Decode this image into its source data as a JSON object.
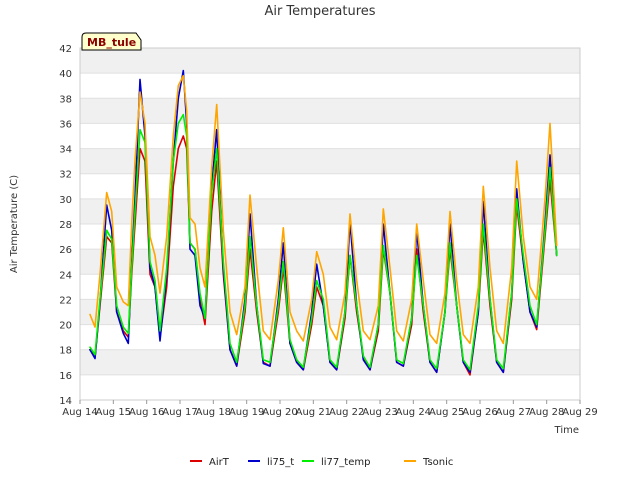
{
  "chart_data": {
    "type": "line",
    "title": "Air Temperatures",
    "xlabel": "Time",
    "ylabel": "Air Temperature (C)",
    "site_label": "MB_tule",
    "xlim": [
      14,
      29
    ],
    "ylim": [
      14,
      42
    ],
    "y_ticks": [
      14,
      16,
      18,
      20,
      22,
      24,
      26,
      28,
      30,
      32,
      34,
      36,
      38,
      40,
      42
    ],
    "x_ticks": [
      {
        "value": 14,
        "label": "Aug 14"
      },
      {
        "value": 15,
        "label": "Aug 15"
      },
      {
        "value": 16,
        "label": "Aug 16"
      },
      {
        "value": 17,
        "label": "Aug 17"
      },
      {
        "value": 18,
        "label": "Aug 18"
      },
      {
        "value": 19,
        "label": "Aug 19"
      },
      {
        "value": 20,
        "label": "Aug 20"
      },
      {
        "value": 21,
        "label": "Aug 21"
      },
      {
        "value": 22,
        "label": "Aug 22"
      },
      {
        "value": 23,
        "label": "Aug 23"
      },
      {
        "value": 24,
        "label": "Aug 24"
      },
      {
        "value": 25,
        "label": "Aug 25"
      },
      {
        "value": 26,
        "label": "Aug 26"
      },
      {
        "value": 27,
        "label": "Aug 27"
      },
      {
        "value": 28,
        "label": "Aug 28"
      },
      {
        "value": 29,
        "label": "Aug 29"
      }
    ],
    "grid": "horizontal bands",
    "legend_position": "bottom",
    "series": [
      {
        "name": "AirT",
        "color": "#dd0000",
        "x": [
          14.3,
          14.45,
          14.6,
          14.8,
          14.95,
          15.1,
          15.3,
          15.45,
          15.55,
          15.65,
          15.8,
          15.95,
          16.1,
          16.25,
          16.4,
          16.6,
          16.8,
          16.95,
          17.1,
          17.2,
          17.3,
          17.45,
          17.6,
          17.75,
          17.95,
          18.1,
          18.3,
          18.5,
          18.7,
          18.95,
          19.1,
          19.3,
          19.5,
          19.7,
          19.95,
          20.1,
          20.3,
          20.5,
          20.7,
          20.95,
          21.1,
          21.3,
          21.5,
          21.7,
          21.95,
          22.1,
          22.3,
          22.5,
          22.7,
          22.95,
          23.1,
          23.3,
          23.5,
          23.7,
          23.95,
          24.1,
          24.3,
          24.5,
          24.7,
          24.95,
          25.1,
          25.3,
          25.5,
          25.7,
          25.95,
          26.1,
          26.3,
          26.5,
          26.7,
          26.95,
          27.1,
          27.3,
          27.5,
          27.7,
          27.95,
          28.1,
          28.3
        ],
        "y": [
          18.0,
          17.4,
          21.5,
          27.0,
          26.5,
          21.0,
          19.5,
          19.0,
          24.0,
          28.0,
          34.0,
          33.0,
          24.0,
          23.0,
          19.0,
          23.0,
          31.0,
          34.0,
          35.0,
          34.0,
          26.5,
          26.0,
          22.0,
          20.0,
          29.0,
          33.0,
          24.0,
          18.0,
          16.7,
          21.0,
          26.0,
          21.0,
          17.0,
          16.7,
          21.0,
          24.5,
          18.5,
          17.0,
          16.4,
          20.0,
          23.0,
          21.5,
          17.0,
          16.4,
          20.5,
          25.5,
          21.0,
          17.5,
          16.4,
          19.5,
          26.0,
          22.5,
          17.0,
          16.7,
          20.0,
          26.0,
          21.0,
          17.0,
          16.2,
          21.0,
          26.0,
          21.5,
          17.0,
          16.0,
          21.0,
          27.5,
          21.5,
          17.0,
          16.2,
          22.0,
          29.5,
          25.0,
          21.0,
          19.6,
          27.0,
          31.5,
          25.5
        ]
      },
      {
        "name": "li75_t",
        "color": "#0000cc",
        "x": [
          14.3,
          14.45,
          14.6,
          14.8,
          14.95,
          15.1,
          15.3,
          15.45,
          15.55,
          15.65,
          15.8,
          15.95,
          16.1,
          16.25,
          16.4,
          16.6,
          16.8,
          16.95,
          17.1,
          17.2,
          17.3,
          17.45,
          17.6,
          17.75,
          17.95,
          18.1,
          18.3,
          18.5,
          18.7,
          18.95,
          19.1,
          19.3,
          19.5,
          19.7,
          19.95,
          20.1,
          20.3,
          20.5,
          20.7,
          20.95,
          21.1,
          21.3,
          21.5,
          21.7,
          21.95,
          22.1,
          22.3,
          22.5,
          22.7,
          22.95,
          23.1,
          23.3,
          23.5,
          23.7,
          23.95,
          24.1,
          24.3,
          24.5,
          24.7,
          24.95,
          25.1,
          25.3,
          25.5,
          25.7,
          25.95,
          26.1,
          26.3,
          26.5,
          26.7,
          26.95,
          27.1,
          27.3,
          27.5,
          27.7,
          27.95,
          28.1,
          28.3
        ],
        "y": [
          18.0,
          17.3,
          21.8,
          29.5,
          27.5,
          21.0,
          19.3,
          18.5,
          25.0,
          30.0,
          39.5,
          35.0,
          24.5,
          23.0,
          18.7,
          24.0,
          33.0,
          38.0,
          40.2,
          36.0,
          26.0,
          25.5,
          21.5,
          20.5,
          31.0,
          35.5,
          24.5,
          18.0,
          16.7,
          22.0,
          28.8,
          21.5,
          16.9,
          16.7,
          22.0,
          26.5,
          18.5,
          17.0,
          16.4,
          21.0,
          24.8,
          21.5,
          17.0,
          16.4,
          21.0,
          28.2,
          21.5,
          17.2,
          16.4,
          20.0,
          28.0,
          22.5,
          17.0,
          16.7,
          20.5,
          27.5,
          21.5,
          17.0,
          16.2,
          21.0,
          28.0,
          21.5,
          17.0,
          16.2,
          21.0,
          29.8,
          22.0,
          17.0,
          16.2,
          22.5,
          30.8,
          25.0,
          21.0,
          19.8,
          28.0,
          33.5,
          25.5
        ]
      },
      {
        "name": "li77_temp",
        "color": "#00ee00",
        "x": [
          14.3,
          14.45,
          14.6,
          14.8,
          14.95,
          15.1,
          15.3,
          15.45,
          15.55,
          15.65,
          15.8,
          15.95,
          16.1,
          16.25,
          16.4,
          16.6,
          16.8,
          16.95,
          17.1,
          17.2,
          17.3,
          17.45,
          17.6,
          17.75,
          17.95,
          18.1,
          18.3,
          18.5,
          18.7,
          18.95,
          19.1,
          19.3,
          19.5,
          19.7,
          19.95,
          20.1,
          20.3,
          20.5,
          20.7,
          20.95,
          21.1,
          21.3,
          21.5,
          21.7,
          21.95,
          22.1,
          22.3,
          22.5,
          22.7,
          22.95,
          23.1,
          23.3,
          23.5,
          23.7,
          23.95,
          24.1,
          24.3,
          24.5,
          24.7,
          24.95,
          25.1,
          25.3,
          25.5,
          25.7,
          25.95,
          26.1,
          26.3,
          26.5,
          26.7,
          26.95,
          27.1,
          27.3,
          27.5,
          27.7,
          27.95,
          28.1,
          28.3
        ],
        "y": [
          18.2,
          17.6,
          22.0,
          27.5,
          26.8,
          21.5,
          19.8,
          19.3,
          24.5,
          29.0,
          35.5,
          34.5,
          25.0,
          23.5,
          19.5,
          24.5,
          33.0,
          36.0,
          36.7,
          35.0,
          26.5,
          26.0,
          22.5,
          20.5,
          30.5,
          34.0,
          25.0,
          18.5,
          17.0,
          21.5,
          27.0,
          21.5,
          17.2,
          17.0,
          21.5,
          25.0,
          18.8,
          17.2,
          16.6,
          20.5,
          23.5,
          22.0,
          17.2,
          16.6,
          21.0,
          25.5,
          21.5,
          17.5,
          16.6,
          20.0,
          26.3,
          22.5,
          17.2,
          16.9,
          20.5,
          25.5,
          21.5,
          17.2,
          16.5,
          21.0,
          26.5,
          21.5,
          17.2,
          16.4,
          21.5,
          28.0,
          22.0,
          17.2,
          16.5,
          22.5,
          30.0,
          25.5,
          21.5,
          20.0,
          27.5,
          32.5,
          25.5
        ]
      },
      {
        "name": "Tsonic",
        "color": "#ffa500",
        "x": [
          14.3,
          14.45,
          14.6,
          14.8,
          14.95,
          15.1,
          15.3,
          15.45,
          15.55,
          15.65,
          15.8,
          15.95,
          16.1,
          16.25,
          16.4,
          16.6,
          16.8,
          16.95,
          17.1,
          17.2,
          17.3,
          17.45,
          17.6,
          17.75,
          17.95,
          18.1,
          18.3,
          18.5,
          18.7,
          18.95,
          19.1,
          19.3,
          19.5,
          19.7,
          19.95,
          20.1,
          20.3,
          20.5,
          20.7,
          20.95,
          21.1,
          21.3,
          21.5,
          21.7,
          21.95,
          22.1,
          22.3,
          22.5,
          22.7,
          22.95,
          23.1,
          23.3,
          23.5,
          23.7,
          23.95,
          24.1,
          24.3,
          24.5,
          24.7,
          24.95,
          25.1,
          25.3,
          25.5,
          25.7,
          25.95,
          26.1,
          26.3,
          26.5,
          26.7,
          26.95,
          27.1,
          27.3,
          27.5,
          27.7,
          27.95,
          28.1,
          28.3
        ],
        "y": [
          20.8,
          19.8,
          24.0,
          30.5,
          29.0,
          23.0,
          21.8,
          21.5,
          28.0,
          33.0,
          38.5,
          36.0,
          27.0,
          25.5,
          22.5,
          27.0,
          35.0,
          39.0,
          39.8,
          37.0,
          28.5,
          28.0,
          24.5,
          23.0,
          32.5,
          37.5,
          27.5,
          21.0,
          19.2,
          23.0,
          30.3,
          24.5,
          19.5,
          18.8,
          23.5,
          27.7,
          21.0,
          19.5,
          18.7,
          22.0,
          25.8,
          24.0,
          19.8,
          18.8,
          22.5,
          28.8,
          23.5,
          19.5,
          18.8,
          21.5,
          29.2,
          24.5,
          19.5,
          18.7,
          22.0,
          28.0,
          23.5,
          19.2,
          18.5,
          22.5,
          29.0,
          23.5,
          19.2,
          18.5,
          23.0,
          31.0,
          24.5,
          19.5,
          18.5,
          24.5,
          33.0,
          27.0,
          23.0,
          22.0,
          30.0,
          36.0,
          26.3
        ]
      }
    ]
  }
}
